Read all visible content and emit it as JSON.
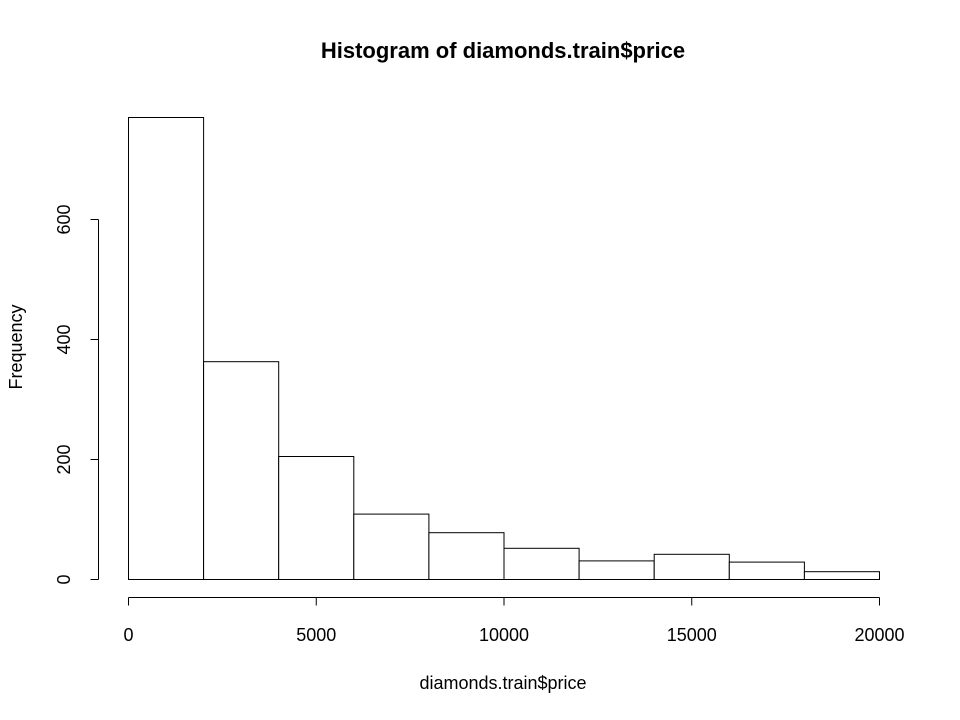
{
  "chart_data": {
    "type": "bar",
    "title": "Histogram of diamonds.train$price",
    "xlabel": "diamonds.train$price",
    "ylabel": "Frequency",
    "bins": [
      {
        "start": 0,
        "end": 2000,
        "count": 770
      },
      {
        "start": 2000,
        "end": 4000,
        "count": 363
      },
      {
        "start": 4000,
        "end": 6000,
        "count": 205
      },
      {
        "start": 6000,
        "end": 8000,
        "count": 109
      },
      {
        "start": 8000,
        "end": 10000,
        "count": 78
      },
      {
        "start": 10000,
        "end": 12000,
        "count": 52
      },
      {
        "start": 12000,
        "end": 14000,
        "count": 31
      },
      {
        "start": 14000,
        "end": 16000,
        "count": 42
      },
      {
        "start": 16000,
        "end": 18000,
        "count": 29
      },
      {
        "start": 18000,
        "end": 20000,
        "count": 13
      }
    ],
    "xlim": [
      0,
      20000
    ],
    "ylim": [
      0,
      770
    ],
    "x_ticks": [
      0,
      5000,
      10000,
      15000,
      20000
    ],
    "x_tick_labels": [
      "0",
      "5000",
      "10000",
      "15000",
      "20000"
    ],
    "y_ticks": [
      0,
      200,
      400,
      600
    ],
    "y_tick_labels": [
      "0",
      "200",
      "400",
      "600"
    ],
    "grid": false,
    "legend": "none"
  }
}
